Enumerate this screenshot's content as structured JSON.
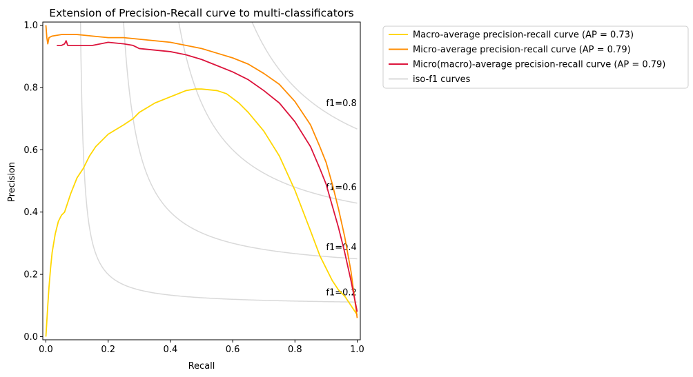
{
  "chart_data": {
    "type": "line",
    "title": "Extension of Precision-Recall curve to multi-classificators",
    "xlabel": "Recall",
    "ylabel": "Precision",
    "xlim": [
      -0.01,
      1.01
    ],
    "ylim": [
      -0.01,
      1.01
    ],
    "xticks": [
      "0.0",
      "0.2",
      "0.4",
      "0.6",
      "0.8",
      "1.0"
    ],
    "yticks": [
      "0.0",
      "0.2",
      "0.4",
      "0.6",
      "0.8",
      "1.0"
    ],
    "grid": false,
    "legend_position": "outside-top-right",
    "series": [
      {
        "name": "Macro-average precision-recall curve (AP = 0.73)",
        "color": "#ffd700",
        "x": [
          0.0,
          0.003,
          0.006,
          0.01,
          0.015,
          0.02,
          0.03,
          0.04,
          0.05,
          0.06,
          0.07,
          0.08,
          0.1,
          0.12,
          0.14,
          0.16,
          0.18,
          0.2,
          0.25,
          0.28,
          0.3,
          0.35,
          0.4,
          0.45,
          0.48,
          0.5,
          0.55,
          0.58,
          0.62,
          0.65,
          0.7,
          0.75,
          0.8,
          0.85,
          0.88,
          0.9,
          0.92,
          0.94,
          0.96,
          0.98,
          1.0
        ],
        "y": [
          0.0,
          0.05,
          0.1,
          0.16,
          0.22,
          0.27,
          0.33,
          0.37,
          0.39,
          0.4,
          0.43,
          0.46,
          0.51,
          0.54,
          0.58,
          0.61,
          0.63,
          0.65,
          0.68,
          0.7,
          0.72,
          0.75,
          0.77,
          0.79,
          0.795,
          0.795,
          0.79,
          0.78,
          0.75,
          0.72,
          0.66,
          0.58,
          0.47,
          0.34,
          0.26,
          0.22,
          0.18,
          0.15,
          0.13,
          0.1,
          0.07
        ]
      },
      {
        "name": "Micro-average precision-recall curve (AP = 0.79)",
        "color": "#ff8c00",
        "x": [
          0.0,
          0.003,
          0.006,
          0.01,
          0.02,
          0.05,
          0.1,
          0.15,
          0.2,
          0.25,
          0.3,
          0.35,
          0.4,
          0.45,
          0.5,
          0.55,
          0.6,
          0.65,
          0.7,
          0.75,
          0.8,
          0.85,
          0.88,
          0.9,
          0.92,
          0.94,
          0.96,
          0.98,
          1.0
        ],
        "y": [
          1.0,
          0.96,
          0.94,
          0.96,
          0.965,
          0.97,
          0.97,
          0.965,
          0.96,
          0.96,
          0.955,
          0.95,
          0.945,
          0.935,
          0.925,
          0.91,
          0.895,
          0.875,
          0.845,
          0.81,
          0.755,
          0.68,
          0.61,
          0.56,
          0.49,
          0.41,
          0.32,
          0.21,
          0.06
        ]
      },
      {
        "name": "Micro(macro)-average precision-recall curve (AP = 0.79)",
        "color": "#dc143c",
        "x": [
          0.035,
          0.05,
          0.06,
          0.065,
          0.07,
          0.1,
          0.15,
          0.2,
          0.25,
          0.28,
          0.3,
          0.35,
          0.4,
          0.45,
          0.5,
          0.55,
          0.6,
          0.65,
          0.7,
          0.75,
          0.8,
          0.85,
          0.88,
          0.9,
          0.92,
          0.94,
          0.96,
          0.98,
          1.0
        ],
        "y": [
          0.935,
          0.935,
          0.94,
          0.95,
          0.935,
          0.935,
          0.935,
          0.945,
          0.94,
          0.935,
          0.925,
          0.92,
          0.915,
          0.905,
          0.89,
          0.87,
          0.85,
          0.825,
          0.79,
          0.75,
          0.69,
          0.61,
          0.54,
          0.49,
          0.42,
          0.35,
          0.27,
          0.18,
          0.08
        ]
      }
    ],
    "iso_f1": {
      "name": "iso-f1 curves",
      "color": "#d9d9d9",
      "values": [
        0.2,
        0.4,
        0.6,
        0.8
      ],
      "labels": [
        "f1=0.2",
        "f1=0.4",
        "f1=0.6",
        "f1=0.8"
      ]
    }
  }
}
